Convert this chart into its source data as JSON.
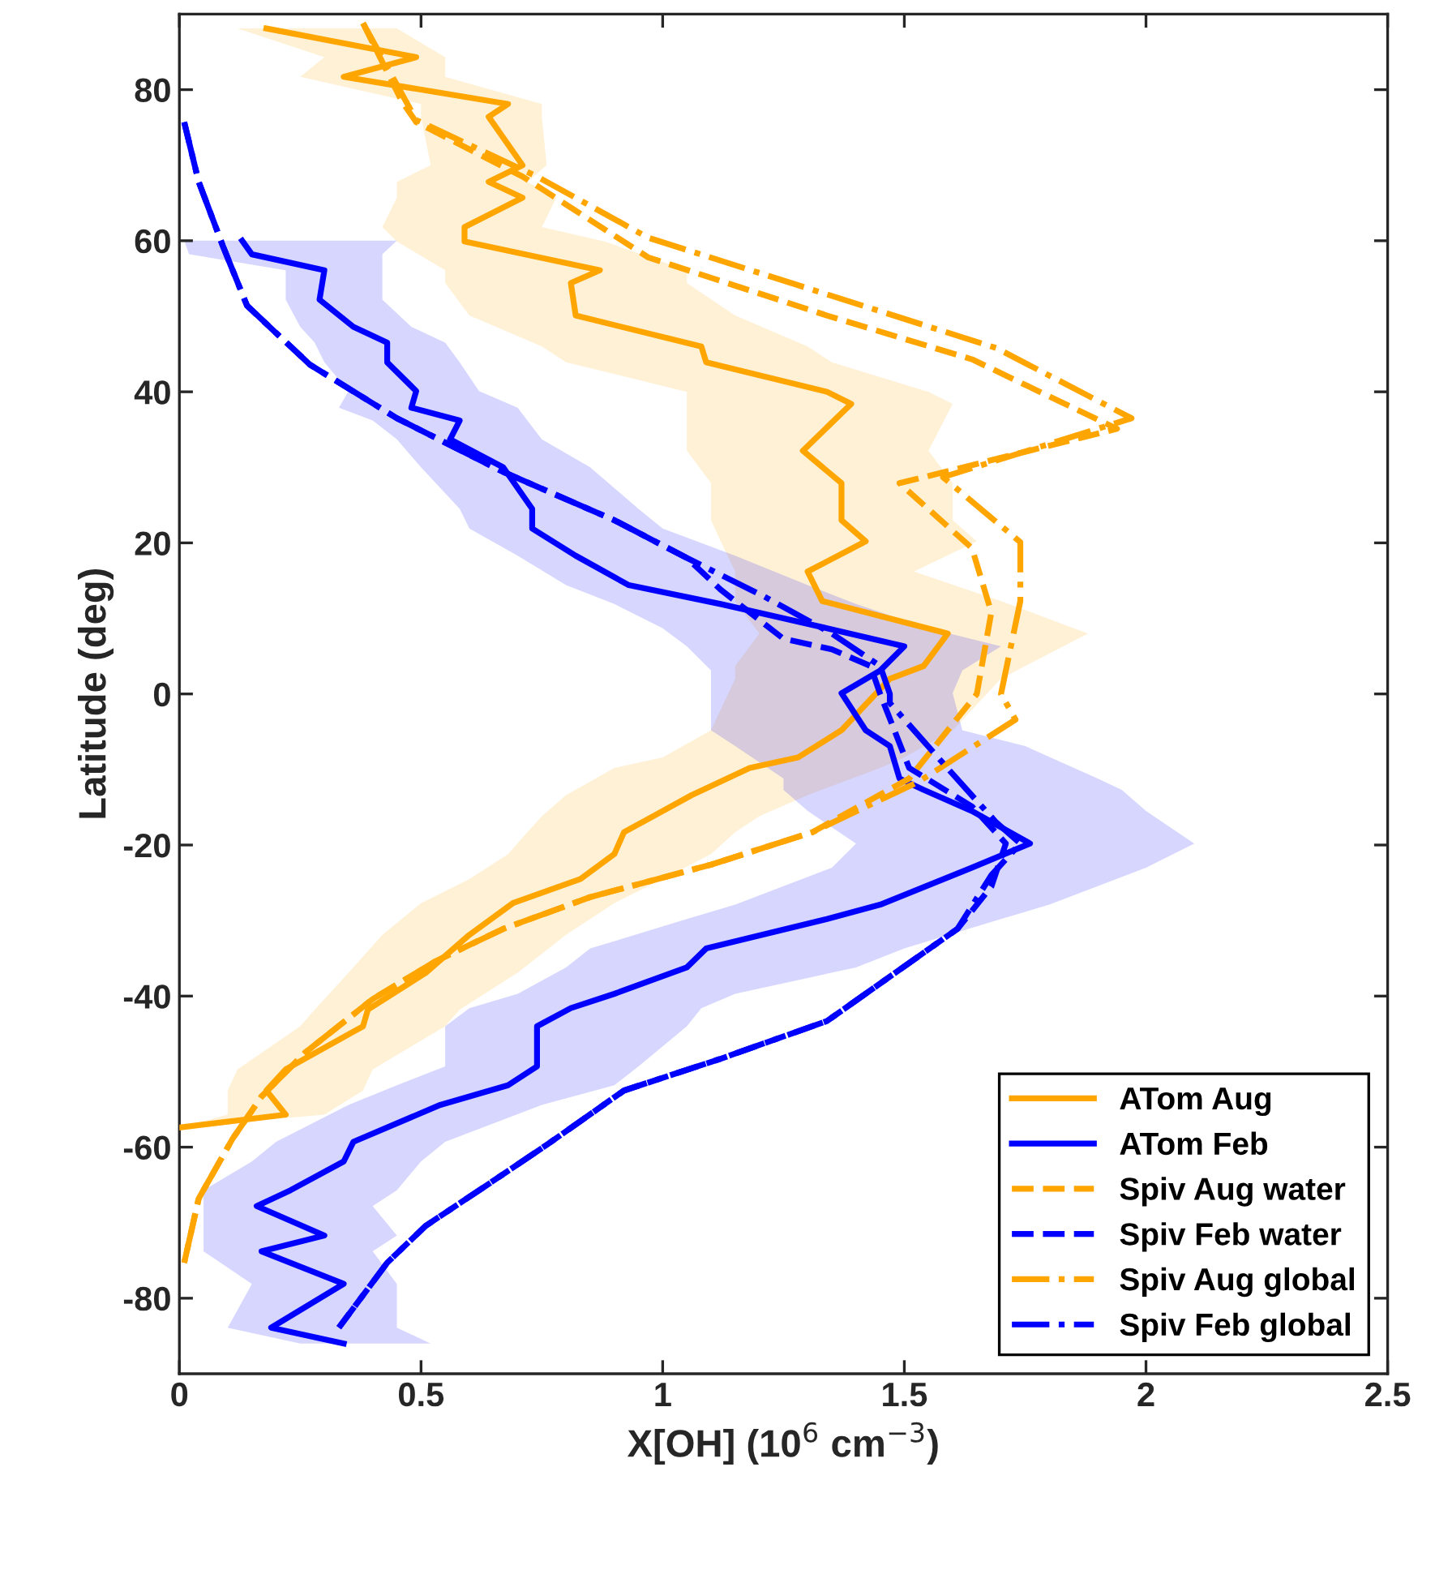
{
  "chart_data": {
    "type": "line",
    "xlabel": "X[OH] (10$^{6}$ cm$^{−3}$)",
    "ylabel": "Latitude (deg)",
    "xlim": [
      0,
      2.5
    ],
    "xticks": [
      0,
      0.5,
      1,
      1.5,
      2,
      2.5
    ],
    "ylim": [
      -90,
      90
    ],
    "yticks": [
      -80,
      -60,
      -40,
      -20,
      0,
      20,
      40,
      60,
      80
    ],
    "grid": false,
    "legend": "bottom right",
    "marker": "none",
    "orientation": "horizontal",
    "series": [
      {
        "name": "ATom Aug",
        "color": "#ffa500",
        "line_style": "solid",
        "values": [
          0.18,
          0.49,
          0.34,
          0.68,
          0.64,
          0.71,
          0.64,
          0.71,
          0.59,
          0.59,
          0.87,
          0.81,
          0.82,
          1.08,
          1.09,
          1.34,
          1.39,
          1.29,
          1.37,
          1.37,
          1.42,
          1.3,
          1.33,
          1.59,
          1.54,
          1.47,
          1.37,
          1.28,
          1.18,
          1.06,
          0.98,
          0.92,
          0.9,
          0.83,
          0.69,
          0.6,
          0.51,
          0.39,
          0.38,
          0.22,
          0.18,
          0.22,
          0.0
        ],
        "x": [
          88.1,
          84.3,
          81.7,
          78.1,
          76.4,
          70,
          67.8,
          65.7,
          61.8,
          59.9,
          56.1,
          54.4,
          50.1,
          46,
          43.9,
          40,
          38.4,
          32.2,
          27.9,
          23,
          20.2,
          16.2,
          12.3,
          8,
          3.7,
          2,
          -4.8,
          -8.4,
          -9.8,
          -13.4,
          -16.2,
          -18.3,
          -21.2,
          -24.5,
          -27.7,
          -31.9,
          -36.9,
          -41.8,
          -44,
          -49.7,
          -52.5,
          -55.7,
          -57.4
        ],
        "lower": [
          0.12,
          0.3,
          0.25,
          0.5,
          0.5,
          0.52,
          0.45,
          0.45,
          0.42,
          0.45,
          0.55,
          0.55,
          0.6,
          0.75,
          0.8,
          1.05,
          1.05,
          1.05,
          1.1,
          1.1,
          1.12,
          1.15,
          1.15,
          1.2,
          1.15,
          1.15,
          1.1,
          1.0,
          0.9,
          0.8,
          0.75,
          0.72,
          0.68,
          0.6,
          0.5,
          0.42,
          0.35,
          0.28,
          0.25,
          0.12,
          0.1,
          0.1,
          0.0
        ],
        "upper": [
          0.45,
          0.55,
          0.55,
          0.75,
          0.75,
          0.76,
          0.72,
          0.78,
          0.75,
          0.88,
          1.05,
          1.05,
          1.15,
          1.3,
          1.35,
          1.55,
          1.6,
          1.55,
          1.6,
          1.6,
          1.65,
          1.52,
          1.7,
          1.88,
          1.75,
          1.7,
          1.6,
          1.5,
          1.45,
          1.3,
          1.2,
          1.15,
          1.1,
          1.0,
          0.9,
          0.8,
          0.7,
          0.58,
          0.55,
          0.4,
          0.38,
          0.3,
          0.0
        ]
      },
      {
        "name": "ATom Feb",
        "color": "#0000ff",
        "line_style": "solid",
        "values": [
          0.13,
          0.15,
          0.3,
          0.29,
          0.36,
          0.43,
          0.43,
          0.49,
          0.48,
          0.58,
          0.56,
          0.67,
          0.73,
          0.73,
          0.82,
          0.93,
          1.12,
          1.34,
          1.5,
          1.45,
          1.37,
          1.42,
          1.47,
          1.49,
          1.54,
          1.64,
          1.76,
          1.64,
          1.45,
          1.34,
          1.09,
          1.05,
          0.9,
          0.81,
          0.74,
          0.74,
          0.68,
          0.54,
          0.36,
          0.34,
          0.23,
          0.16,
          0.3,
          0.17,
          0.34,
          0.19,
          0.34
        ],
        "x": [
          60,
          58.2,
          56.1,
          52.2,
          48.6,
          46.5,
          43.9,
          40.1,
          37.9,
          36.2,
          33.7,
          30,
          24.5,
          21.9,
          18.3,
          14.4,
          11.9,
          8.7,
          6.3,
          3.1,
          0.1,
          -4.8,
          -6.9,
          -11.2,
          -12.7,
          -15.5,
          -19.8,
          -23,
          -27.9,
          -29.8,
          -33.7,
          -36.2,
          -39.7,
          -41.6,
          -44,
          -49.3,
          -51.8,
          -54.4,
          -59.3,
          -61.9,
          -65.7,
          -67.8,
          -71.7,
          -73.8,
          -78.1,
          -83.9,
          -86
        ],
        "lower": [
          0.01,
          0.02,
          0.22,
          0.22,
          0.25,
          0.28,
          0.3,
          0.35,
          0.33,
          0.4,
          0.45,
          0.5,
          0.58,
          0.6,
          0.7,
          0.8,
          0.9,
          1.0,
          1.05,
          1.1,
          1.1,
          1.1,
          1.15,
          1.25,
          1.25,
          1.3,
          1.4,
          1.35,
          1.15,
          1.05,
          0.85,
          0.8,
          0.7,
          0.6,
          0.55,
          0.55,
          0.45,
          0.35,
          0.2,
          0.15,
          0.05,
          0.05,
          0.05,
          0.05,
          0.15,
          0.1,
          0.25
        ],
        "upper": [
          0.45,
          0.42,
          0.42,
          0.42,
          0.48,
          0.55,
          0.58,
          0.62,
          0.7,
          0.72,
          0.75,
          0.85,
          0.95,
          1.0,
          1.15,
          1.3,
          1.4,
          1.55,
          1.7,
          1.62,
          1.6,
          1.62,
          1.75,
          1.9,
          1.95,
          2.0,
          2.1,
          2.0,
          1.8,
          1.7,
          1.5,
          1.4,
          1.15,
          1.08,
          1.05,
          0.95,
          0.9,
          0.75,
          0.55,
          0.5,
          0.45,
          0.4,
          0.45,
          0.4,
          0.45,
          0.45,
          0.52
        ]
      },
      {
        "name": "Spiv Aug water",
        "color": "#ffa500",
        "line_style": "dashed",
        "values": [
          0.38,
          0.46,
          0.49,
          0.71,
          0.97,
          1.34,
          1.64,
          1.94,
          1.49,
          1.64,
          1.68,
          1.65,
          1.51,
          1.31,
          1.1,
          0.85,
          0.67,
          0.53,
          0.4,
          0.26,
          0.17,
          0.11,
          0.04,
          0.01
        ],
        "x": [
          88.8,
          78.5,
          75.7,
          68.5,
          57.8,
          50.1,
          44.3,
          35.1,
          27.9,
          19.3,
          10.8,
          0,
          -11.2,
          -18.3,
          -22.6,
          -26.9,
          -31.1,
          -35.4,
          -40.4,
          -47.5,
          -53.3,
          -58.9,
          -66.8,
          -75.3
        ]
      },
      {
        "name": "Spiv Feb water",
        "color": "#0000ff",
        "line_style": "dashed",
        "values": [
          0.01,
          0.04,
          0.09,
          0.14,
          0.27,
          0.45,
          0.67,
          0.9,
          1.05,
          1.12,
          1.25,
          1.35,
          1.43,
          1.45,
          1.51,
          1.64,
          1.71,
          1.68,
          1.61,
          1.34,
          1.12,
          0.92,
          0.76,
          0.63,
          0.51,
          0.43,
          0.33
        ],
        "x": [
          75.7,
          67.8,
          59.3,
          51.4,
          43.6,
          36.5,
          29.4,
          23,
          18,
          13.8,
          7.3,
          5.9,
          3.7,
          0,
          -9.8,
          -14.9,
          -19.8,
          -25.5,
          -31.1,
          -43.3,
          -48.3,
          -52.5,
          -59.7,
          -65.3,
          -70.4,
          -75.3,
          -83.9
        ]
      },
      {
        "name": "Spiv Aug global",
        "color": "#ffa500",
        "line_style": "dashdot",
        "values": [
          0.38,
          0.49,
          0.74,
          0.97,
          1.69,
          1.97,
          1.58,
          1.74,
          1.74,
          1.7,
          1.73,
          1.53,
          1.31,
          1.1,
          0.85,
          0.67,
          0.53,
          0.4,
          0.26,
          0.17,
          0.11,
          0.04,
          0.01
        ],
        "x": [
          88.8,
          76,
          68.5,
          60.4,
          45.8,
          36.5,
          28.7,
          20.1,
          12.3,
          0,
          -3.4,
          -11.6,
          -18.3,
          -22.6,
          -26.9,
          -31.1,
          -35.4,
          -40.4,
          -47.5,
          -53.3,
          -58.9,
          -66.8,
          -75.3
        ]
      },
      {
        "name": "Spiv Feb global",
        "color": "#0000ff",
        "line_style": "dashdot",
        "values": [
          0.01,
          0.04,
          0.09,
          0.14,
          0.27,
          0.45,
          0.67,
          0.9,
          1.05,
          1.21,
          1.35,
          1.45,
          1.47,
          1.47,
          1.6,
          1.69,
          1.74,
          1.68,
          1.61,
          1.34,
          1.12,
          0.92,
          0.76,
          0.63,
          0.51,
          0.43,
          0.33
        ],
        "x": [
          75.7,
          67.8,
          59.3,
          51.4,
          43.6,
          36.5,
          29.4,
          23,
          18,
          12.9,
          8,
          3.7,
          0,
          -1.2,
          -10.6,
          -17,
          -19.8,
          -24,
          -31.1,
          -43.3,
          -48.3,
          -52.5,
          -59.7,
          -65.3,
          -70.4,
          -75.3,
          -83.9
        ]
      }
    ]
  }
}
